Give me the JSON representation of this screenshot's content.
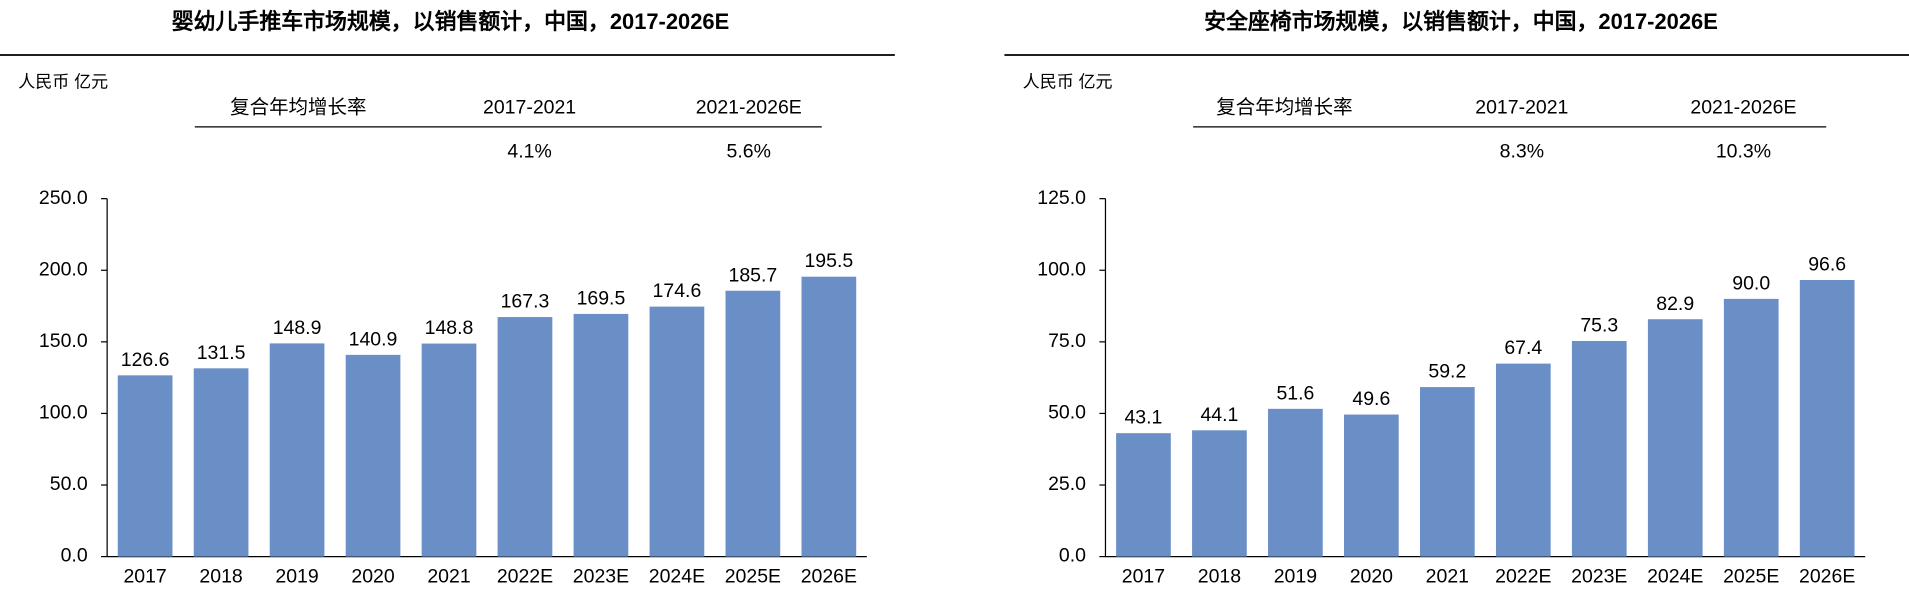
{
  "chart_data": [
    {
      "type": "bar",
      "title": "婴幼儿手推车市场规模，以销售额计，中国，2017-2026E",
      "unit": "人民币 亿元",
      "cagr": {
        "header": "复合年均增长率",
        "periods": [
          "2017-2021",
          "2021-2026E"
        ],
        "rates": [
          "4.1%",
          "5.6%"
        ]
      },
      "categories": [
        "2017",
        "2018",
        "2019",
        "2020",
        "2021",
        "2022E",
        "2023E",
        "2024E",
        "2025E",
        "2026E"
      ],
      "values": [
        126.6,
        131.5,
        148.9,
        140.9,
        148.8,
        167.3,
        169.5,
        174.6,
        185.7,
        195.5
      ],
      "value_labels": [
        "126.6",
        "131.5",
        "148.9",
        "140.9",
        "148.8",
        "167.3",
        "169.5",
        "174.6",
        "185.7",
        "195.5"
      ],
      "color": "#6a8ec6",
      "ylim": [
        0,
        250
      ],
      "yticks": [
        {
          "value": 0,
          "label": "0.0"
        },
        {
          "value": 50,
          "label": "50.0"
        },
        {
          "value": 100,
          "label": "100.0"
        },
        {
          "value": 150,
          "label": "150.0"
        },
        {
          "value": 200,
          "label": "200.0"
        },
        {
          "value": 250,
          "label": "250.0"
        }
      ]
    },
    {
      "type": "bar",
      "title": "安全座椅市场规模，以销售额计，中国，2017-2026E",
      "unit": "人民币 亿元",
      "cagr": {
        "header": "复合年均增长率",
        "periods": [
          "2017-2021",
          "2021-2026E"
        ],
        "rates": [
          "8.3%",
          "10.3%"
        ]
      },
      "categories": [
        "2017",
        "2018",
        "2019",
        "2020",
        "2021",
        "2022E",
        "2023E",
        "2024E",
        "2025E",
        "2026E"
      ],
      "values": [
        43.1,
        44.1,
        51.6,
        49.6,
        59.2,
        67.4,
        75.3,
        82.9,
        90,
        96.6
      ],
      "value_labels": [
        "43.1",
        "44.1",
        "51.6",
        "49.6",
        "59.2",
        "67.4",
        "75.3",
        "82.9",
        "90.0",
        "96.6"
      ],
      "color": "#6a8ec6",
      "ylim": [
        0,
        125
      ],
      "yticks": [
        {
          "value": 0,
          "label": "0.0"
        },
        {
          "value": 25,
          "label": "25.0"
        },
        {
          "value": 50,
          "label": "50.0"
        },
        {
          "value": 75,
          "label": "75.0"
        },
        {
          "value": 100,
          "label": "100.0"
        },
        {
          "value": 125,
          "label": "125.0"
        }
      ]
    }
  ]
}
